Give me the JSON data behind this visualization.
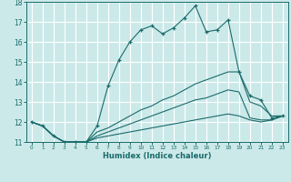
{
  "xlabel": "Humidex (Indice chaleur)",
  "xlim": [
    -0.5,
    23.5
  ],
  "ylim": [
    11,
    18
  ],
  "yticks": [
    11,
    12,
    13,
    14,
    15,
    16,
    17,
    18
  ],
  "xticks": [
    0,
    1,
    2,
    3,
    4,
    5,
    6,
    7,
    8,
    9,
    10,
    11,
    12,
    13,
    14,
    15,
    16,
    17,
    18,
    19,
    20,
    21,
    22,
    23
  ],
  "bg_color": "#cce9e9",
  "grid_color": "#e8f5f5",
  "line_color": "#1a6b6b",
  "lines": [
    {
      "x": [
        0,
        1,
        2,
        3,
        4,
        5,
        6,
        7,
        8,
        9,
        10,
        11,
        12,
        13,
        14,
        15,
        16,
        17,
        18,
        19,
        20,
        21,
        22,
        23
      ],
      "y": [
        12.0,
        11.8,
        11.3,
        11.0,
        11.0,
        11.0,
        11.8,
        13.8,
        15.1,
        16.0,
        16.6,
        16.8,
        16.4,
        16.7,
        17.2,
        17.8,
        16.5,
        16.6,
        17.1,
        14.5,
        13.3,
        13.1,
        12.2,
        12.3
      ],
      "marker": "+"
    },
    {
      "x": [
        0,
        1,
        2,
        3,
        4,
        5,
        6,
        7,
        8,
        9,
        10,
        11,
        12,
        13,
        14,
        15,
        16,
        17,
        18,
        19,
        20,
        21,
        22,
        23
      ],
      "y": [
        12.0,
        11.8,
        11.3,
        11.0,
        11.0,
        11.0,
        11.5,
        11.7,
        12.0,
        12.3,
        12.6,
        12.8,
        13.1,
        13.3,
        13.6,
        13.9,
        14.1,
        14.3,
        14.5,
        14.5,
        13.0,
        12.8,
        12.3,
        12.3
      ],
      "marker": null
    },
    {
      "x": [
        0,
        1,
        2,
        3,
        4,
        5,
        6,
        7,
        8,
        9,
        10,
        11,
        12,
        13,
        14,
        15,
        16,
        17,
        18,
        19,
        20,
        21,
        22,
        23
      ],
      "y": [
        12.0,
        11.8,
        11.3,
        11.0,
        11.0,
        11.0,
        11.3,
        11.5,
        11.7,
        11.9,
        12.1,
        12.3,
        12.5,
        12.7,
        12.9,
        13.1,
        13.2,
        13.4,
        13.6,
        13.5,
        12.2,
        12.1,
        12.1,
        12.3
      ],
      "marker": null
    },
    {
      "x": [
        0,
        1,
        2,
        3,
        4,
        5,
        6,
        7,
        8,
        9,
        10,
        11,
        12,
        13,
        14,
        15,
        16,
        17,
        18,
        19,
        20,
        21,
        22,
        23
      ],
      "y": [
        12.0,
        11.8,
        11.3,
        11.0,
        11.0,
        11.0,
        11.2,
        11.3,
        11.4,
        11.5,
        11.6,
        11.7,
        11.8,
        11.9,
        12.0,
        12.1,
        12.2,
        12.3,
        12.4,
        12.3,
        12.1,
        12.0,
        12.1,
        12.3
      ],
      "marker": null
    }
  ]
}
